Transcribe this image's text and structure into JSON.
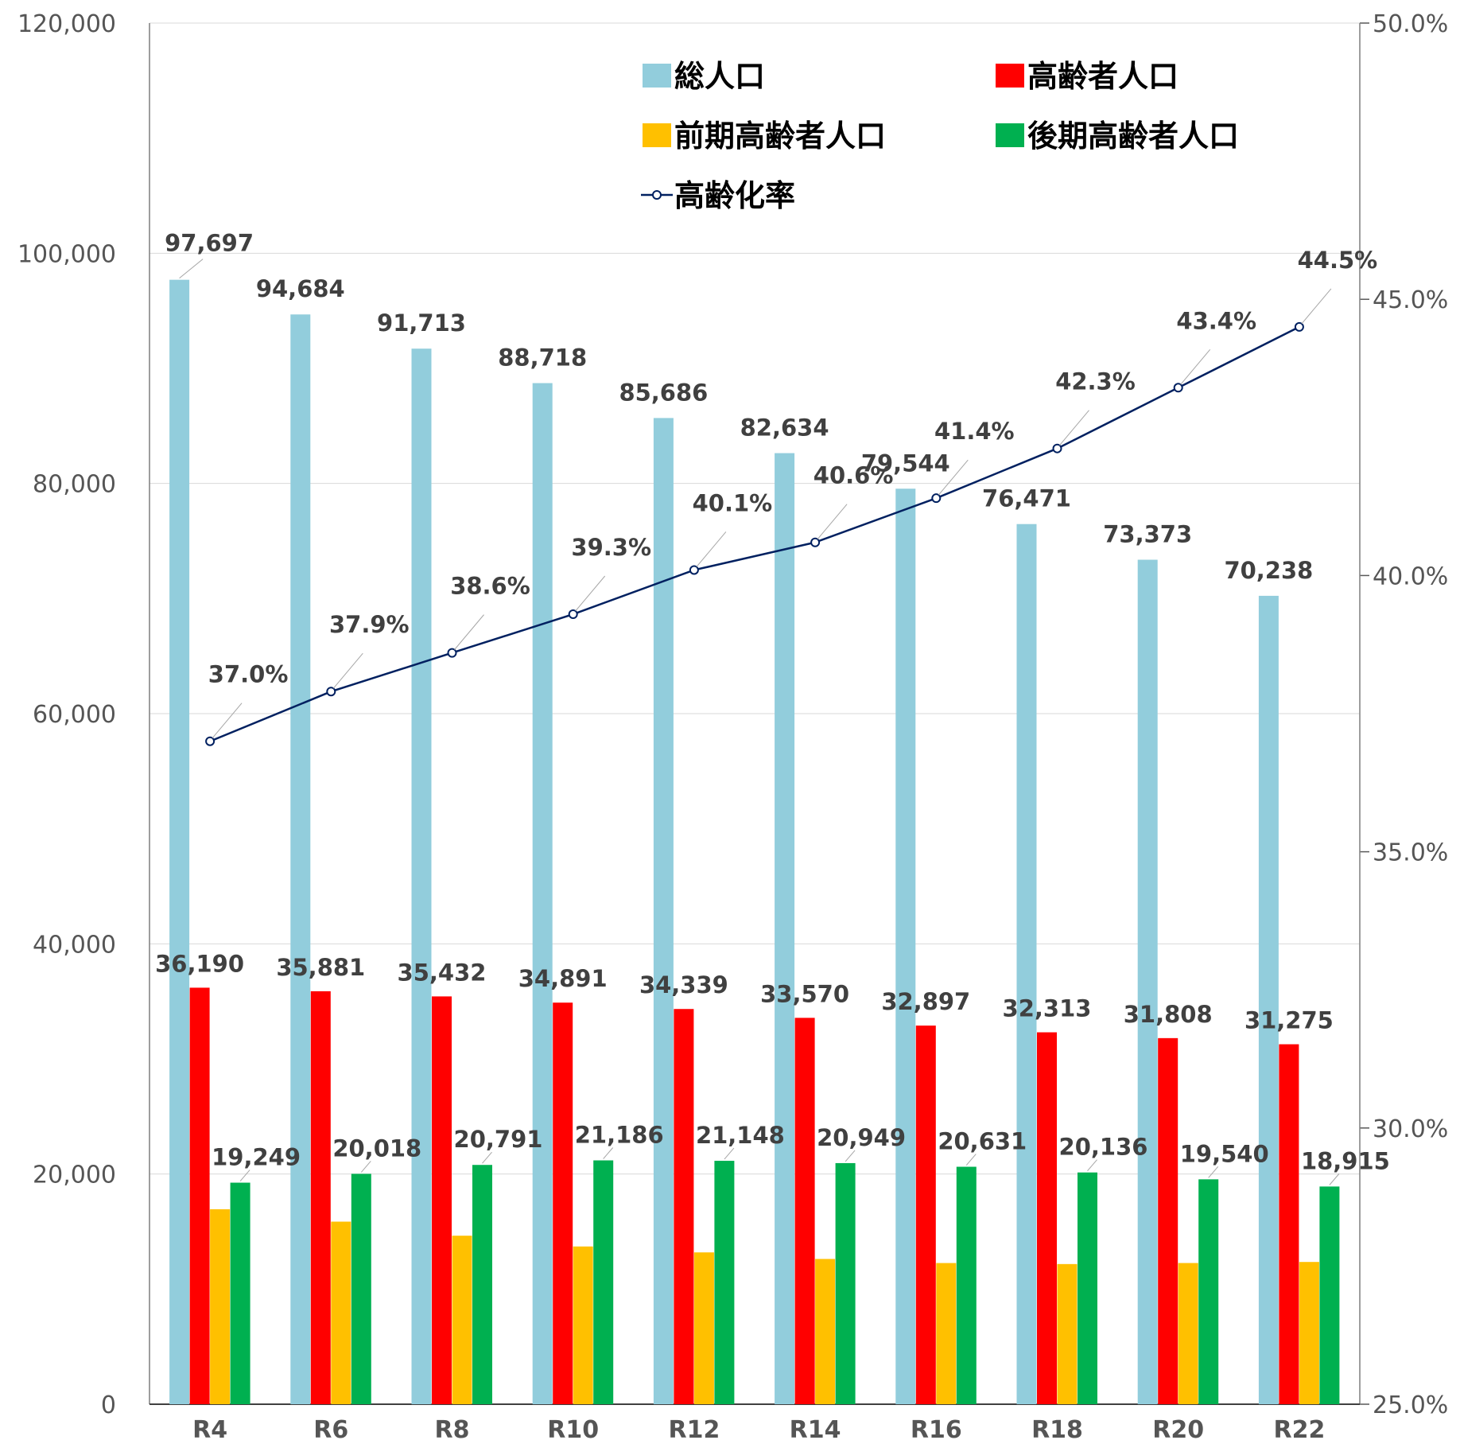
{
  "chart_data": {
    "type": "bar",
    "categories": [
      "R4",
      "R6",
      "R8",
      "R10",
      "R12",
      "R14",
      "R16",
      "R18",
      "R20",
      "R22"
    ],
    "series": [
      {
        "name": "総人口",
        "type": "bar",
        "color": "#92CDDC",
        "labeled": true,
        "values": [
          97697,
          94684,
          91713,
          88718,
          85686,
          82634,
          79544,
          76471,
          73373,
          70238
        ],
        "labels": [
          "97,697",
          "94,684",
          "91,713",
          "88,718",
          "85,686",
          "82,634",
          "79,544",
          "76,471",
          "73,373",
          "70,238"
        ]
      },
      {
        "name": "高齢者人口",
        "type": "bar",
        "color": "#FF0000",
        "labeled": true,
        "values": [
          36190,
          35881,
          35432,
          34891,
          34339,
          33570,
          32897,
          32313,
          31808,
          31275
        ],
        "labels": [
          "36,190",
          "35,881",
          "35,432",
          "34,891",
          "34,339",
          "33,570",
          "32,897",
          "32,313",
          "31,808",
          "31,275"
        ]
      },
      {
        "name": "前期高齢者人口",
        "type": "bar",
        "color": "#FFC000",
        "labeled": false,
        "values": [
          16941,
          15863,
          14641,
          13705,
          13191,
          12621,
          12266,
          12177,
          12268,
          12360
        ],
        "labels": []
      },
      {
        "name": "後期高齢者人口",
        "type": "bar",
        "color": "#00B050",
        "labeled": true,
        "values": [
          19249,
          20018,
          20791,
          21186,
          21148,
          20949,
          20631,
          20136,
          19540,
          18915
        ],
        "labels": [
          "19,249",
          "20,018",
          "20,791",
          "21,186",
          "21,148",
          "20,949",
          "20,631",
          "20,136",
          "19,540",
          "18,915"
        ]
      },
      {
        "name": "高齢化率",
        "type": "line",
        "axis": "right",
        "color": "#002060",
        "labeled": true,
        "values": [
          37.0,
          37.9,
          38.6,
          39.3,
          40.1,
          40.6,
          41.4,
          42.3,
          43.4,
          44.5
        ],
        "labels": [
          "37.0%",
          "37.9%",
          "38.6%",
          "39.3%",
          "40.1%",
          "40.6%",
          "41.4%",
          "42.3%",
          "43.4%",
          "44.5%"
        ]
      }
    ],
    "y_left": {
      "min": 0,
      "max": 120000,
      "step": 20000,
      "tick_labels": [
        "0",
        "20,000",
        "40,000",
        "60,000",
        "80,000",
        "100,000",
        "120,000"
      ]
    },
    "y_right": {
      "min": 25,
      "max": 50,
      "step": 5,
      "tick_labels": [
        "25.0%",
        "30.0%",
        "35.0%",
        "40.0%",
        "45.0%",
        "50.0%"
      ]
    },
    "grid": true,
    "legend_position": "top-right"
  }
}
